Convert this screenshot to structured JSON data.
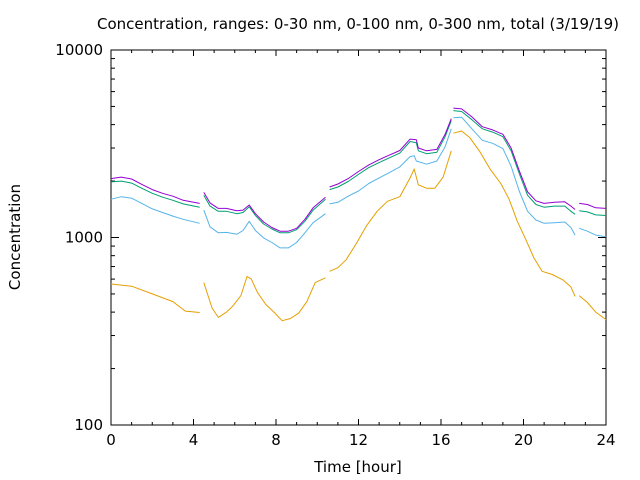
{
  "chart_data": {
    "type": "line",
    "title": "Concentration, ranges: 0-30 nm, 0-100 nm, 0-300 nm, total (3/19/19)",
    "xlabel": "Time [hour]",
    "ylabel": "Concentration",
    "xlim": [
      0,
      24
    ],
    "ylim": [
      100,
      10000
    ],
    "yscale": "log",
    "grid": false,
    "legend": "none",
    "xticks": [
      0,
      4,
      8,
      12,
      16,
      20,
      24
    ],
    "yticks": [
      100,
      1000,
      10000
    ],
    "series": [
      {
        "color": "#e69f00",
        "segments": [
          [
            [
              0,
              565
            ],
            [
              1,
              550
            ],
            [
              2,
              500
            ],
            [
              3,
              455
            ],
            [
              3.6,
              405
            ],
            [
              4.3,
              398
            ]
          ],
          [
            [
              4.5,
              575
            ],
            [
              4.9,
              420
            ],
            [
              5.2,
              375
            ],
            [
              5.6,
              400
            ],
            [
              5.9,
              430
            ],
            [
              6.3,
              490
            ],
            [
              6.6,
              620
            ],
            [
              6.8,
              600
            ],
            [
              7.1,
              510
            ],
            [
              7.5,
              440
            ],
            [
              7.9,
              400
            ],
            [
              8.3,
              360
            ],
            [
              8.7,
              370
            ],
            [
              9.1,
              395
            ],
            [
              9.5,
              455
            ],
            [
              9.9,
              575
            ],
            [
              10.4,
              610
            ]
          ],
          [
            [
              10.6,
              660
            ],
            [
              11,
              690
            ],
            [
              11.4,
              760
            ],
            [
              11.9,
              930
            ],
            [
              12.4,
              1160
            ],
            [
              12.9,
              1380
            ],
            [
              13.4,
              1560
            ],
            [
              14.0,
              1650
            ],
            [
              14.5,
              2080
            ],
            [
              14.7,
              2320
            ],
            [
              14.9,
              1910
            ],
            [
              15.3,
              1830
            ],
            [
              15.7,
              1830
            ],
            [
              16.1,
              2100
            ],
            [
              16.5,
              2900
            ]
          ],
          [
            [
              16.6,
              3600
            ],
            [
              17,
              3700
            ],
            [
              17.4,
              3400
            ],
            [
              17.9,
              2850
            ],
            [
              18.4,
              2300
            ],
            [
              18.9,
              1940
            ],
            [
              19.3,
              1600
            ],
            [
              19.7,
              1220
            ],
            [
              20.1,
              980
            ],
            [
              20.5,
              780
            ],
            [
              20.9,
              660
            ],
            [
              21.4,
              635
            ],
            [
              21.9,
              595
            ],
            [
              22.3,
              545
            ],
            [
              22.5,
              485
            ]
          ],
          [
            [
              22.7,
              490
            ],
            [
              23.1,
              450
            ],
            [
              23.5,
              400
            ],
            [
              24,
              365
            ]
          ]
        ]
      },
      {
        "color": "#56b4e9",
        "segments": [
          [
            [
              0,
              1600
            ],
            [
              0.5,
              1650
            ],
            [
              1,
              1620
            ],
            [
              1.5,
              1520
            ],
            [
              2,
              1420
            ],
            [
              2.5,
              1360
            ],
            [
              3,
              1300
            ],
            [
              3.5,
              1250
            ],
            [
              4.3,
              1190
            ]
          ],
          [
            [
              4.5,
              1400
            ],
            [
              4.8,
              1140
            ],
            [
              5.2,
              1060
            ],
            [
              5.6,
              1065
            ],
            [
              6.1,
              1040
            ],
            [
              6.4,
              1090
            ],
            [
              6.7,
              1220
            ],
            [
              7.0,
              1090
            ],
            [
              7.4,
              995
            ],
            [
              7.8,
              940
            ],
            [
              8.2,
              880
            ],
            [
              8.6,
              880
            ],
            [
              9.0,
              940
            ],
            [
              9.4,
              1060
            ],
            [
              9.8,
              1200
            ],
            [
              10.4,
              1340
            ]
          ],
          [
            [
              10.6,
              1510
            ],
            [
              11,
              1540
            ],
            [
              11.5,
              1660
            ],
            [
              12,
              1770
            ],
            [
              12.5,
              1940
            ],
            [
              13,
              2080
            ],
            [
              13.5,
              2220
            ],
            [
              14.0,
              2380
            ],
            [
              14.5,
              2700
            ],
            [
              14.7,
              2730
            ],
            [
              14.8,
              2560
            ],
            [
              15.3,
              2460
            ],
            [
              15.8,
              2560
            ],
            [
              16.2,
              3050
            ],
            [
              16.5,
              3800
            ]
          ],
          [
            [
              16.6,
              4350
            ],
            [
              17,
              4380
            ],
            [
              17.5,
              3800
            ],
            [
              18,
              3300
            ],
            [
              18.5,
              3180
            ],
            [
              19,
              2980
            ],
            [
              19.4,
              2400
            ],
            [
              19.8,
              1760
            ],
            [
              20.2,
              1380
            ],
            [
              20.6,
              1240
            ],
            [
              21,
              1190
            ],
            [
              21.5,
              1200
            ],
            [
              22,
              1210
            ],
            [
              22.3,
              1130
            ],
            [
              22.5,
              1030
            ]
          ],
          [
            [
              22.7,
              1120
            ],
            [
              23.1,
              1080
            ],
            [
              23.5,
              1030
            ],
            [
              24,
              1010
            ]
          ]
        ]
      },
      {
        "color": "#009e73",
        "segments": [
          [
            [
              0,
              1980
            ],
            [
              0.5,
              2000
            ],
            [
              1,
              1950
            ],
            [
              1.5,
              1830
            ],
            [
              2,
              1720
            ],
            [
              2.5,
              1640
            ],
            [
              3,
              1580
            ],
            [
              3.5,
              1510
            ],
            [
              4.3,
              1450
            ]
          ],
          [
            [
              4.5,
              1680
            ],
            [
              4.8,
              1470
            ],
            [
              5.2,
              1380
            ],
            [
              5.6,
              1380
            ],
            [
              6.1,
              1340
            ],
            [
              6.4,
              1360
            ],
            [
              6.7,
              1460
            ],
            [
              7.0,
              1310
            ],
            [
              7.4,
              1180
            ],
            [
              7.8,
              1110
            ],
            [
              8.2,
              1060
            ],
            [
              8.6,
              1060
            ],
            [
              9.0,
              1100
            ],
            [
              9.4,
              1220
            ],
            [
              9.8,
              1400
            ],
            [
              10.4,
              1600
            ]
          ],
          [
            [
              10.6,
              1800
            ],
            [
              11,
              1860
            ],
            [
              11.5,
              1990
            ],
            [
              12,
              2170
            ],
            [
              12.5,
              2360
            ],
            [
              13,
              2510
            ],
            [
              13.5,
              2660
            ],
            [
              14.0,
              2820
            ],
            [
              14.5,
              3250
            ],
            [
              14.8,
              3200
            ],
            [
              14.9,
              2900
            ],
            [
              15.3,
              2800
            ],
            [
              15.8,
              2850
            ],
            [
              16.2,
              3450
            ],
            [
              16.5,
              4200
            ]
          ],
          [
            [
              16.6,
              4750
            ],
            [
              17,
              4700
            ],
            [
              17.5,
              4250
            ],
            [
              18,
              3800
            ],
            [
              18.5,
              3650
            ],
            [
              19,
              3450
            ],
            [
              19.4,
              2900
            ],
            [
              19.8,
              2180
            ],
            [
              20.2,
              1680
            ],
            [
              20.6,
              1500
            ],
            [
              21,
              1450
            ],
            [
              21.5,
              1470
            ],
            [
              22,
              1470
            ],
            [
              22.3,
              1380
            ],
            [
              22.5,
              1330
            ]
          ],
          [
            [
              22.7,
              1390
            ],
            [
              23.1,
              1370
            ],
            [
              23.5,
              1320
            ],
            [
              24,
              1310
            ]
          ]
        ]
      },
      {
        "color": "#9400d3",
        "segments": [
          [
            [
              0,
              2060
            ],
            [
              0.5,
              2100
            ],
            [
              1,
              2050
            ],
            [
              1.5,
              1920
            ],
            [
              2,
              1800
            ],
            [
              2.5,
              1720
            ],
            [
              3,
              1660
            ],
            [
              3.5,
              1580
            ],
            [
              4.3,
              1520
            ]
          ],
          [
            [
              4.5,
              1740
            ],
            [
              4.8,
              1530
            ],
            [
              5.2,
              1430
            ],
            [
              5.6,
              1430
            ],
            [
              6.1,
              1390
            ],
            [
              6.4,
              1400
            ],
            [
              6.7,
              1490
            ],
            [
              7.0,
              1340
            ],
            [
              7.4,
              1210
            ],
            [
              7.8,
              1130
            ],
            [
              8.2,
              1080
            ],
            [
              8.6,
              1080
            ],
            [
              9.0,
              1120
            ],
            [
              9.4,
              1250
            ],
            [
              9.8,
              1440
            ],
            [
              10.4,
              1640
            ]
          ],
          [
            [
              10.6,
              1860
            ],
            [
              11,
              1930
            ],
            [
              11.5,
              2060
            ],
            [
              12,
              2250
            ],
            [
              12.5,
              2440
            ],
            [
              13,
              2600
            ],
            [
              13.5,
              2750
            ],
            [
              14.0,
              2910
            ],
            [
              14.5,
              3350
            ],
            [
              14.8,
              3320
            ],
            [
              14.9,
              3000
            ],
            [
              15.3,
              2900
            ],
            [
              15.8,
              2950
            ],
            [
              16.2,
              3550
            ],
            [
              16.5,
              4300
            ]
          ],
          [
            [
              16.6,
              4900
            ],
            [
              17,
              4850
            ],
            [
              17.5,
              4400
            ],
            [
              18,
              3900
            ],
            [
              18.5,
              3750
            ],
            [
              19,
              3550
            ],
            [
              19.4,
              3000
            ],
            [
              19.8,
              2260
            ],
            [
              20.2,
              1750
            ],
            [
              20.6,
              1570
            ],
            [
              21,
              1520
            ],
            [
              21.5,
              1540
            ],
            [
              22,
              1550
            ],
            [
              22.3,
              1470
            ],
            [
              22.5,
              1410
            ]
          ],
          [
            [
              22.7,
              1520
            ],
            [
              23.1,
              1500
            ],
            [
              23.5,
              1440
            ],
            [
              24,
              1430
            ]
          ]
        ]
      }
    ]
  }
}
